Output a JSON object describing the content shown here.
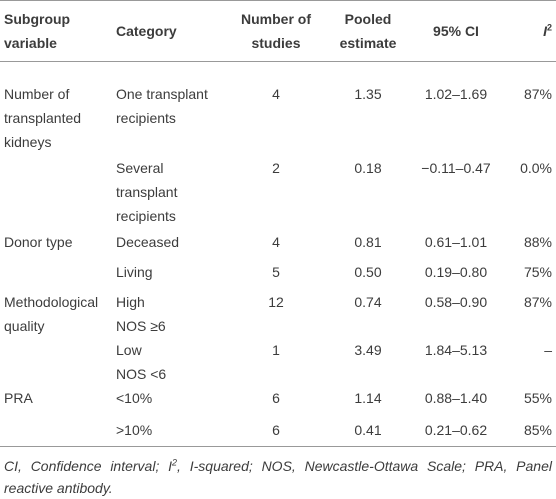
{
  "table": {
    "header": [
      [
        "Subgroup",
        "variable"
      ],
      [
        "Category"
      ],
      [
        "Number of",
        "studies"
      ],
      [
        "Pooled",
        "estimate"
      ],
      [
        "95% CI"
      ],
      {
        "text": "I",
        "sup": "2"
      }
    ],
    "rows": [
      {
        "subgroup": [
          "Number of",
          "transplanted",
          "kidneys"
        ],
        "category": [
          "One transplant",
          "recipients"
        ],
        "studies": "4",
        "pooled": "1.35",
        "ci": "1.02–1.69",
        "i2": "87%"
      },
      {
        "category": [
          "Several",
          "transplant",
          "recipients"
        ],
        "studies": "2",
        "pooled": "0.18",
        "ci": "−0.11–0.47",
        "i2": "0.0%"
      },
      {
        "subgroup": [
          "Donor type"
        ],
        "category": [
          "Deceased"
        ],
        "studies": "4",
        "pooled": "0.81",
        "ci": "0.61–1.01",
        "i2": "88%"
      },
      {
        "category": [
          "Living"
        ],
        "studies": "5",
        "pooled": "0.50",
        "ci": "0.19–0.80",
        "i2": "75%"
      },
      {
        "subgroup": [
          "Methodological",
          "quality"
        ],
        "category": [
          "High",
          "NOS ≥6"
        ],
        "studies": "12",
        "pooled": "0.74",
        "ci": "0.58–0.90",
        "i2": "87%"
      },
      {
        "category": [
          "Low",
          "NOS <6"
        ],
        "studies": "1",
        "pooled": "3.49",
        "ci": "1.84–5.13",
        "i2": "–"
      },
      {
        "subgroup": [
          "PRA"
        ],
        "category": [
          "<10%"
        ],
        "studies": "6",
        "pooled": "1.14",
        "ci": "0.88–1.40",
        "i2": "55%"
      },
      {
        "category": [
          ">10%"
        ],
        "studies": "6",
        "pooled": "0.41",
        "ci": "0.21–0.62",
        "i2": "85%"
      }
    ]
  },
  "footnote": {
    "before": "CI, Confidence interval; I",
    "sup": "2",
    "after": ", I-squared; NOS, Newcastle-Ottawa Scale; PRA, Panel reactive antibody."
  }
}
